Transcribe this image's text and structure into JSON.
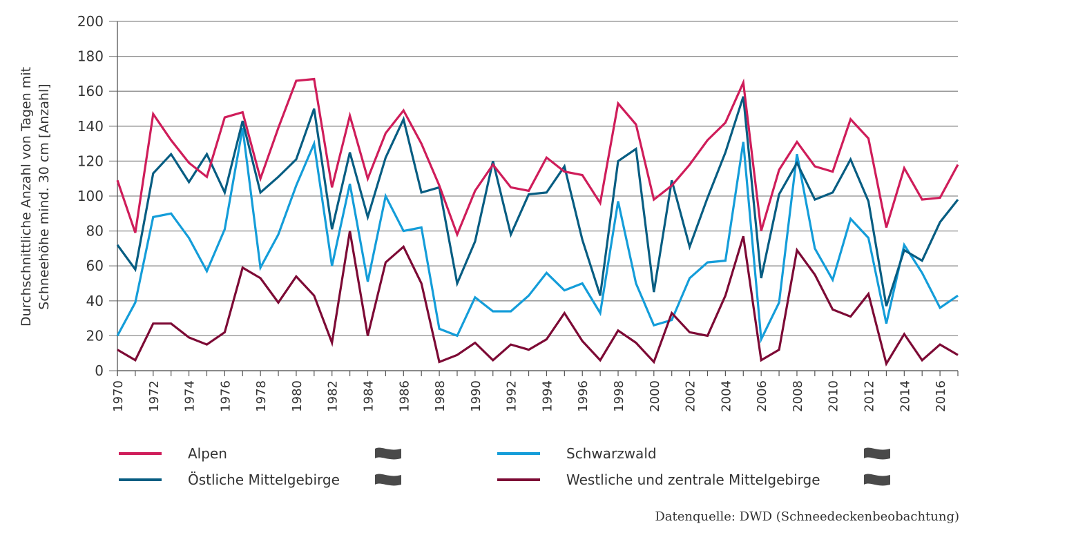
{
  "chart_data": {
    "type": "line",
    "title": "",
    "xlabel": "",
    "ylabel": "Durchschnittliche Anzahl von Tagen mit Schneehöhe mind. 30 cm [Anzahl]",
    "ylabel_lines": [
      "Durchschnittliche Anzahl von Tagen mit",
      "Schneehöhe mind. 30 cm [Anzahl]"
    ],
    "ylim": [
      0,
      200
    ],
    "yticks": [
      0,
      20,
      40,
      60,
      80,
      100,
      120,
      140,
      160,
      180,
      200
    ],
    "grid": true,
    "legend_position": "bottom",
    "x": [
      1970,
      1971,
      1972,
      1973,
      1974,
      1975,
      1976,
      1977,
      1978,
      1979,
      1980,
      1981,
      1982,
      1983,
      1984,
      1985,
      1986,
      1987,
      1988,
      1989,
      1990,
      1991,
      1992,
      1993,
      1994,
      1995,
      1996,
      1997,
      1998,
      1999,
      2000,
      2001,
      2002,
      2003,
      2004,
      2005,
      2006,
      2007,
      2008,
      2009,
      2010,
      2011,
      2012,
      2013,
      2014,
      2015,
      2016,
      2017
    ],
    "xtick_labels": [
      "1970",
      "1972",
      "1974",
      "1976",
      "1978",
      "1980",
      "1982",
      "1984",
      "1986",
      "1988",
      "1990",
      "1992",
      "1994",
      "1996",
      "1998",
      "2000",
      "2002",
      "2004",
      "2006",
      "2008",
      "2010",
      "2012",
      "2014",
      "2016"
    ],
    "series": [
      {
        "name": "Alpen",
        "color": "#cf1d5a",
        "trend_icon": "trend-none-icon",
        "values": [
          109,
          79,
          147,
          132,
          119,
          111,
          145,
          148,
          110,
          139,
          166,
          167,
          105,
          146,
          110,
          136,
          149,
          130,
          106,
          78,
          103,
          118,
          105,
          103,
          122,
          114,
          112,
          96,
          153,
          141,
          98,
          106,
          118,
          132,
          142,
          165,
          80,
          115,
          131,
          117,
          114,
          144,
          133,
          82,
          116,
          98,
          99,
          118
        ]
      },
      {
        "name": "Schwarzwald",
        "color": "#149dd9",
        "trend_icon": "trend-none-icon",
        "values": [
          20,
          39,
          88,
          90,
          76,
          57,
          81,
          139,
          59,
          78,
          106,
          130,
          60,
          107,
          51,
          100,
          80,
          82,
          24,
          20,
          42,
          34,
          34,
          43,
          56,
          46,
          50,
          33,
          97,
          50,
          26,
          29,
          53,
          62,
          63,
          131,
          18,
          39,
          124,
          70,
          52,
          87,
          76,
          27,
          72,
          56,
          36,
          43
        ]
      },
      {
        "name": "Östliche Mittelgebirge",
        "color": "#075d82",
        "trend_icon": "trend-none-icon",
        "values": [
          72,
          58,
          113,
          124,
          108,
          124,
          102,
          143,
          102,
          111,
          121,
          150,
          81,
          125,
          88,
          122,
          144,
          102,
          105,
          50,
          74,
          120,
          78,
          101,
          102,
          117,
          75,
          43,
          120,
          127,
          45,
          109,
          71,
          99,
          125,
          157,
          53,
          101,
          119,
          98,
          102,
          121,
          97,
          37,
          69,
          63,
          85,
          98
        ]
      },
      {
        "name": "Westliche und zentrale Mittelgebirge",
        "color": "#7d0a35",
        "trend_icon": "trend-none-icon",
        "values": [
          12,
          6,
          27,
          27,
          19,
          15,
          22,
          59,
          53,
          39,
          54,
          43,
          16,
          80,
          20,
          62,
          71,
          50,
          5,
          9,
          16,
          6,
          15,
          12,
          18,
          33,
          17,
          6,
          23,
          16,
          5,
          33,
          22,
          20,
          43,
          77,
          6,
          12,
          69,
          55,
          35,
          31,
          44,
          4,
          21,
          6,
          15,
          9
        ]
      }
    ],
    "source": "Datenquelle: DWD (Schneedeckenbeobachtung)"
  }
}
